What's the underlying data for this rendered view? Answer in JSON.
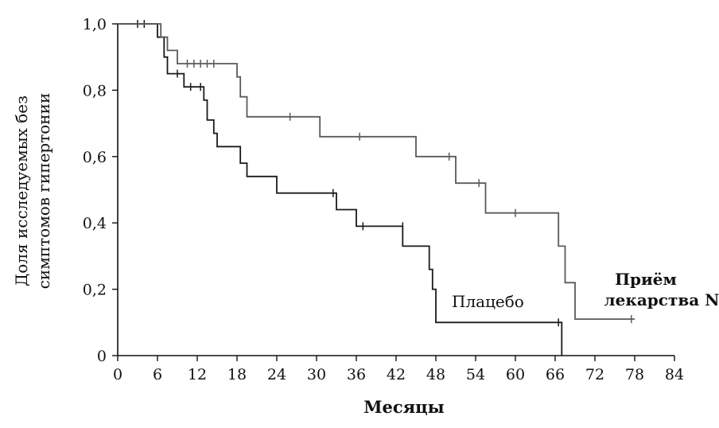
{
  "chart_data": {
    "type": "line",
    "step": true,
    "xlabel": "Месяцы",
    "ylabel_lines": [
      "Доля исследуемых без",
      "симптомов гипертонии"
    ],
    "xlim": [
      0,
      84
    ],
    "ylim": [
      0,
      1.0
    ],
    "x_ticks": [
      0,
      6,
      12,
      18,
      24,
      30,
      36,
      42,
      48,
      54,
      60,
      66,
      72,
      78,
      84
    ],
    "x_tick_labels": [
      "0",
      "6",
      "12",
      "18",
      "24",
      "30",
      "36",
      "42",
      "48",
      "54",
      "60",
      "66",
      "72",
      "78",
      "84"
    ],
    "y_ticks": [
      0,
      0.2,
      0.4,
      0.6,
      0.8,
      1.0
    ],
    "y_tick_labels": [
      "0",
      "0,2",
      "0,4",
      "0,6",
      "0,8",
      "1,0"
    ],
    "grid": false,
    "legend": "inline",
    "series": [
      {
        "name": "Плацебо",
        "label_lines": [
          "Плацебо"
        ],
        "color": "#1a1a1a",
        "points": [
          [
            0,
            1.0
          ],
          [
            6,
            1.0
          ],
          [
            6,
            0.96
          ],
          [
            7,
            0.96
          ],
          [
            7,
            0.9
          ],
          [
            7.5,
            0.9
          ],
          [
            7.5,
            0.85
          ],
          [
            10,
            0.85
          ],
          [
            10,
            0.81
          ],
          [
            13,
            0.81
          ],
          [
            13,
            0.77
          ],
          [
            13.5,
            0.77
          ],
          [
            13.5,
            0.71
          ],
          [
            14.5,
            0.71
          ],
          [
            14.5,
            0.67
          ],
          [
            15,
            0.67
          ],
          [
            15,
            0.63
          ],
          [
            18.5,
            0.63
          ],
          [
            18.5,
            0.58
          ],
          [
            19.5,
            0.58
          ],
          [
            19.5,
            0.54
          ],
          [
            24,
            0.54
          ],
          [
            24,
            0.49
          ],
          [
            33,
            0.49
          ],
          [
            33,
            0.44
          ],
          [
            36,
            0.44
          ],
          [
            36,
            0.39
          ],
          [
            43,
            0.39
          ],
          [
            43,
            0.33
          ],
          [
            47,
            0.33
          ],
          [
            47,
            0.26
          ],
          [
            47.5,
            0.26
          ],
          [
            47.5,
            0.2
          ],
          [
            48,
            0.2
          ],
          [
            48,
            0.1
          ],
          [
            67,
            0.1
          ],
          [
            67,
            0.0
          ]
        ],
        "censored": [
          [
            3,
            1.0
          ],
          [
            4,
            1.0
          ],
          [
            9,
            0.85
          ],
          [
            11,
            0.81
          ],
          [
            12.5,
            0.81
          ],
          [
            32.5,
            0.49
          ],
          [
            37,
            0.39
          ],
          [
            43,
            0.39
          ],
          [
            66.5,
            0.1
          ]
        ]
      },
      {
        "name": "Приём лекарства N",
        "label_lines": [
          "Приём",
          "лекарства N"
        ],
        "color": "#5a5a5a",
        "points": [
          [
            0,
            1.0
          ],
          [
            6.5,
            1.0
          ],
          [
            6.5,
            0.96
          ],
          [
            7.5,
            0.96
          ],
          [
            7.5,
            0.92
          ],
          [
            9,
            0.92
          ],
          [
            9,
            0.88
          ],
          [
            18,
            0.88
          ],
          [
            18,
            0.84
          ],
          [
            18.5,
            0.84
          ],
          [
            18.5,
            0.78
          ],
          [
            19.5,
            0.78
          ],
          [
            19.5,
            0.72
          ],
          [
            30.5,
            0.72
          ],
          [
            30.5,
            0.66
          ],
          [
            45,
            0.66
          ],
          [
            45,
            0.6
          ],
          [
            51,
            0.6
          ],
          [
            51,
            0.52
          ],
          [
            55.5,
            0.52
          ],
          [
            55.5,
            0.43
          ],
          [
            66.5,
            0.43
          ],
          [
            66.5,
            0.33
          ],
          [
            67.5,
            0.33
          ],
          [
            67.5,
            0.22
          ],
          [
            69,
            0.22
          ],
          [
            69,
            0.11
          ],
          [
            78,
            0.11
          ]
        ],
        "censored": [
          [
            10.5,
            0.88
          ],
          [
            11.5,
            0.88
          ],
          [
            12.5,
            0.88
          ],
          [
            13.5,
            0.88
          ],
          [
            14.5,
            0.88
          ],
          [
            26,
            0.72
          ],
          [
            36.5,
            0.66
          ],
          [
            50,
            0.6
          ],
          [
            54.5,
            0.52
          ],
          [
            60,
            0.43
          ],
          [
            77.5,
            0.11
          ]
        ]
      }
    ]
  }
}
